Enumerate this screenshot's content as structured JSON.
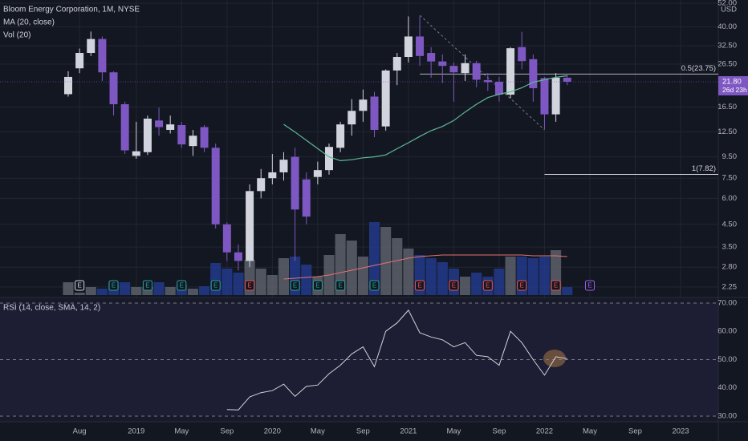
{
  "chart_data": {
    "type": "candlestick",
    "title": "Bloom Energy Corporation, 1M, NYSE",
    "currency": "USD",
    "log_scale": true,
    "grid": true,
    "up_color": "#d1d4dc",
    "down_color": "#7e57c2",
    "categories": [
      null,
      "Aug",
      null,
      null,
      null,
      null,
      "2019",
      null,
      null,
      null,
      "May",
      null,
      null,
      null,
      "Sep",
      null,
      null,
      null,
      "2020",
      null,
      null,
      null,
      "May",
      null,
      null,
      null,
      "Sep",
      null,
      null,
      null,
      "2021",
      null,
      null,
      null,
      "May",
      null,
      null,
      null,
      "Sep",
      null,
      null,
      null,
      "2022",
      null,
      null,
      null,
      "May",
      null,
      null,
      null,
      "Sep",
      null,
      null,
      null,
      "2023"
    ],
    "open": [
      19,
      25.3,
      30,
      35,
      24.2,
      17,
      9.6,
      10,
      14.2,
      12.8,
      13.5,
      10.7,
      13.2,
      10.5,
      4.5,
      3.3,
      3.0,
      6.5,
      7.5,
      8,
      9.5,
      7.4,
      7.6,
      8.2,
      10.5,
      13.6,
      15.8,
      18.5,
      13.3,
      24.7,
      28.7,
      36,
      30,
      27.3,
      26,
      24,
      26.8,
      22.2,
      21.8,
      18.9,
      32,
      28,
      22.7,
      15.2,
      22.8,
      null,
      null,
      null,
      null,
      null,
      null,
      null,
      null,
      null,
      null
    ],
    "high": [
      24.5,
      31.5,
      38,
      36,
      24.5,
      17.5,
      14,
      15,
      16.4,
      15,
      14,
      12.8,
      13.5,
      11,
      4.6,
      3.6,
      7,
      8.3,
      9.8,
      10,
      10.5,
      8,
      9,
      11,
      14,
      18,
      20,
      19.5,
      25,
      30,
      44.95,
      44.95,
      32,
      29.5,
      27,
      29.5,
      27.5,
      24,
      23,
      32,
      37.9,
      29.5,
      23,
      24,
      23.5,
      null,
      null,
      null,
      null,
      null,
      null,
      null,
      null,
      null,
      null
    ],
    "low": [
      18.5,
      24,
      29,
      22,
      15,
      9.8,
      9.3,
      9.7,
      12,
      12.3,
      10.5,
      9.6,
      10,
      4.3,
      3.0,
      2.7,
      2.8,
      6,
      7,
      7.3,
      3.0,
      4.5,
      7,
      7.8,
      10,
      12,
      14,
      11.8,
      12.7,
      21,
      27,
      26,
      22.8,
      21.5,
      17.5,
      22,
      20.5,
      19.7,
      17.5,
      18.2,
      25,
      17.5,
      12.9,
      14,
      21,
      null,
      null,
      null,
      null,
      null,
      null,
      null,
      null,
      null,
      null
    ],
    "close": [
      23,
      30,
      35,
      24.2,
      17,
      10.2,
      10.1,
      14.5,
      13.2,
      13.6,
      10.9,
      12,
      10.5,
      4.5,
      3.3,
      3.0,
      6.5,
      7.5,
      8,
      9.2,
      5.3,
      4.9,
      8.2,
      10.6,
      13.6,
      15.8,
      17.9,
      12.8,
      24.7,
      28.7,
      36,
      29,
      27.3,
      26,
      24.2,
      26.8,
      22.3,
      21.7,
      18.9,
      31.6,
      27.4,
      20.3,
      15.2,
      22.8,
      21.8,
      null,
      null,
      null,
      null,
      null,
      null,
      null,
      null,
      null,
      null
    ],
    "ylim": [
      2.02,
      53.9
    ],
    "yticks": [
      {
        "value": 52,
        "label": "52.00"
      },
      {
        "value": 40,
        "label": "40.00"
      },
      {
        "value": 32.5,
        "label": "32.50"
      },
      {
        "value": 26.5,
        "label": "26.50"
      },
      {
        "value": 16.5,
        "label": "16.50"
      },
      {
        "value": 12.5,
        "label": "12.50"
      },
      {
        "value": 9.5,
        "label": "9.50"
      },
      {
        "value": 7.5,
        "label": "7.50"
      },
      {
        "value": 6,
        "label": "6.00"
      },
      {
        "value": 4.5,
        "label": "4.50"
      },
      {
        "value": 3.5,
        "label": "3.50"
      },
      {
        "value": 2.8,
        "label": "2.80"
      },
      {
        "value": 2.25,
        "label": "2.25"
      }
    ],
    "last_price": {
      "value": 21.8,
      "label": "21.80",
      "countdown": "26d 23h"
    },
    "ma": {
      "title": "MA (20, close)",
      "color": "#5fb996",
      "values": [
        null,
        null,
        null,
        null,
        null,
        null,
        null,
        null,
        null,
        null,
        null,
        null,
        null,
        null,
        null,
        null,
        null,
        null,
        null,
        13.6,
        12.5,
        11.4,
        10.4,
        9.5,
        9.1,
        9.2,
        9.4,
        9.5,
        9.7,
        10.4,
        11.1,
        11.9,
        12.7,
        13.3,
        14.2,
        15.6,
        17.0,
        18.3,
        19.0,
        19.5,
        20.4,
        21.7,
        22.3,
        22.9,
        23.3,
        null,
        null,
        null,
        null,
        null,
        null,
        null,
        null,
        null,
        null
      ]
    },
    "volume": {
      "title": "Vol (20)",
      "up_color": "#5d606b",
      "down_color": "#233a8c",
      "values": [
        16,
        3,
        10,
        8,
        16,
        16,
        10,
        10,
        16,
        10,
        13,
        8,
        11,
        40,
        33,
        28,
        44,
        33,
        25,
        46,
        48,
        38,
        23,
        50,
        76,
        68,
        48,
        91,
        85,
        71,
        58,
        50,
        46,
        41,
        33,
        23,
        28,
        23,
        33,
        48,
        48,
        46,
        48,
        56,
        10,
        null,
        null,
        null,
        null,
        null,
        null,
        null,
        null,
        null,
        null
      ],
      "ma": {
        "color": "#e57373",
        "values": [
          null,
          null,
          null,
          null,
          null,
          null,
          null,
          null,
          null,
          null,
          null,
          null,
          null,
          null,
          null,
          null,
          null,
          null,
          null,
          20,
          21,
          22,
          23,
          25,
          28,
          31,
          34,
          37,
          40,
          43,
          46,
          48,
          49,
          50,
          50,
          50,
          50,
          50,
          50,
          50,
          50,
          49,
          49,
          49,
          48,
          null,
          null,
          null,
          null,
          null,
          null,
          null,
          null,
          null,
          null
        ]
      }
    },
    "fib": {
      "from": 31,
      "to": 42,
      "from_value": 45.5,
      "to_value": 12.8,
      "color": "#787b86",
      "levels": [
        {
          "value": 23.75,
          "label": "0.5(23.75)",
          "start": 31
        },
        {
          "value": 7.82,
          "label": "1(7.82)",
          "start": 42
        }
      ]
    },
    "events": [
      {
        "candle": 1,
        "label": "E",
        "color": "#d1d4dc"
      },
      {
        "candle": 4,
        "label": "E",
        "color": "#26a69a"
      },
      {
        "candle": 7,
        "label": "E",
        "color": "#26a69a"
      },
      {
        "candle": 10,
        "label": "E",
        "color": "#26a69a"
      },
      {
        "candle": 13,
        "label": "E",
        "color": "#26a69a"
      },
      {
        "candle": 16,
        "label": "E",
        "color": "#ef5350"
      },
      {
        "candle": 20,
        "label": "E",
        "color": "#26a69a"
      },
      {
        "candle": 22,
        "label": "E",
        "color": "#26a69a"
      },
      {
        "candle": 24,
        "label": "E",
        "color": "#26a69a"
      },
      {
        "candle": 27,
        "label": "E",
        "color": "#26a69a"
      },
      {
        "candle": 31,
        "label": "E",
        "color": "#ef5350"
      },
      {
        "candle": 34,
        "label": "E",
        "color": "#ef5350"
      },
      {
        "candle": 37,
        "label": "E",
        "color": "#ef5350"
      },
      {
        "candle": 40,
        "label": "E",
        "color": "#ef5350"
      },
      {
        "candle": 43,
        "label": "E",
        "color": "#ef5350"
      },
      {
        "candle": 46,
        "label": "E",
        "color": "#9c5cf0"
      }
    ],
    "rsi": {
      "title": "RSI (14, close, SMA, 14, 2)",
      "color": "#d1d4dc",
      "ylim": [
        28,
        71.7
      ],
      "yticks": [
        {
          "value": 70,
          "label": "70.00"
        },
        {
          "value": 60,
          "label": "60.00"
        },
        {
          "value": 50,
          "label": "50.00"
        },
        {
          "value": 40,
          "label": "40.00"
        },
        {
          "value": 30,
          "label": "30.00"
        }
      ],
      "levels": [
        70,
        50,
        30
      ],
      "values": [
        null,
        null,
        null,
        null,
        null,
        null,
        null,
        null,
        null,
        null,
        null,
        null,
        null,
        null,
        32.3,
        32.2,
        36.8,
        38.3,
        39,
        41.3,
        37,
        40.5,
        41,
        45,
        48,
        52,
        54.5,
        47.5,
        60,
        63,
        67.5,
        59.5,
        58,
        57,
        54.5,
        56,
        51.5,
        51,
        48,
        60,
        56,
        50,
        44.5,
        51,
        50.3,
        null,
        null,
        null,
        null,
        null,
        null,
        null,
        null,
        null,
        null
      ]
    }
  }
}
